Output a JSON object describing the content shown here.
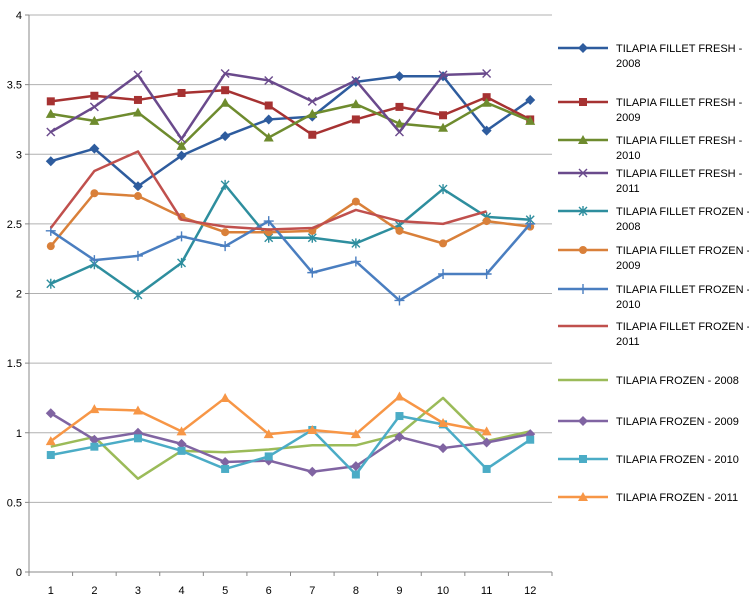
{
  "chart_data": {
    "type": "line",
    "x": [
      1,
      2,
      3,
      4,
      5,
      6,
      7,
      8,
      9,
      10,
      11,
      12
    ],
    "ylim": [
      0,
      4
    ],
    "yticks": [
      "0",
      "0.5",
      "1",
      "1.5",
      "2",
      "2.5",
      "3",
      "3.5",
      "4"
    ],
    "xticks": [
      "1",
      "2",
      "3",
      "4",
      "5",
      "6",
      "7",
      "8",
      "9",
      "10",
      "11",
      "12"
    ],
    "grid": "horizontal",
    "legend_position": "right",
    "series": [
      {
        "name": "TILAPIA FILLET  FRESH -",
        "name2": "2008",
        "color": "#2E5C9E",
        "marker": "diamond",
        "values": [
          2.95,
          3.04,
          2.77,
          2.99,
          3.13,
          3.25,
          3.27,
          3.52,
          3.56,
          3.56,
          3.17,
          3.39
        ]
      },
      {
        "name": "TILAPIA FILLET  FRESH -",
        "name2": "2009",
        "color": "#A63232",
        "marker": "square",
        "values": [
          3.38,
          3.42,
          3.39,
          3.44,
          3.46,
          3.35,
          3.14,
          3.25,
          3.34,
          3.28,
          3.41,
          3.25
        ]
      },
      {
        "name": "TILAPIA FILLET  FRESH -",
        "name2": "2010",
        "color": "#6E8B2E",
        "marker": "triangle",
        "values": [
          3.29,
          3.24,
          3.3,
          3.06,
          3.37,
          3.12,
          3.29,
          3.36,
          3.22,
          3.19,
          3.37,
          3.24
        ]
      },
      {
        "name": "TILAPIA FILLET  FRESH -",
        "name2": "2011",
        "color": "#6A4A8C",
        "marker": "x",
        "values": [
          3.16,
          3.34,
          3.57,
          3.11,
          3.58,
          3.53,
          3.38,
          3.53,
          3.16,
          3.57,
          3.58,
          null
        ]
      },
      {
        "name": "TILAPIA FILLET  FROZEN -",
        "name2": "2008",
        "color": "#2E8E9E",
        "marker": "star",
        "values": [
          2.07,
          2.21,
          1.99,
          2.22,
          2.78,
          2.4,
          2.4,
          2.36,
          2.49,
          2.75,
          2.55,
          2.53
        ]
      },
      {
        "name": "TILAPIA FILLET  FROZEN -",
        "name2": "2009",
        "color": "#D9803A",
        "marker": "circle",
        "values": [
          2.34,
          2.72,
          2.7,
          2.55,
          2.44,
          2.44,
          2.45,
          2.66,
          2.45,
          2.36,
          2.52,
          2.48
        ]
      },
      {
        "name": "TILAPIA FILLET  FROZEN -",
        "name2": "2010",
        "color": "#4A7EC0",
        "marker": "plus",
        "values": [
          2.45,
          2.24,
          2.27,
          2.41,
          2.34,
          2.52,
          2.15,
          2.23,
          1.95,
          2.14,
          2.14,
          2.5
        ]
      },
      {
        "name": "TILAPIA FILLET  FROZEN -",
        "name2": "2011",
        "color": "#C0504D",
        "marker": "none",
        "values": [
          2.47,
          2.88,
          3.02,
          2.53,
          2.48,
          2.46,
          2.47,
          2.6,
          2.52,
          2.5,
          2.59,
          null
        ]
      },
      {
        "name": "TILAPIA FROZEN - 2008",
        "name2": "",
        "color": "#9BBB59",
        "marker": "none",
        "values": [
          0.9,
          0.97,
          0.67,
          0.87,
          0.86,
          0.88,
          0.91,
          0.91,
          0.99,
          1.25,
          0.94,
          1.01
        ]
      },
      {
        "name": "TILAPIA FROZEN - 2009",
        "name2": "",
        "color": "#8064A2",
        "marker": "diamond",
        "values": [
          1.14,
          0.95,
          1.0,
          0.92,
          0.79,
          0.8,
          0.72,
          0.76,
          0.97,
          0.89,
          0.93,
          0.99
        ]
      },
      {
        "name": "TILAPIA FROZEN - 2010",
        "name2": "",
        "color": "#4BACC6",
        "marker": "square",
        "values": [
          0.84,
          0.9,
          0.96,
          0.87,
          0.74,
          0.83,
          1.02,
          0.7,
          1.12,
          1.06,
          0.74,
          0.95
        ]
      },
      {
        "name": "TILAPIA FROZEN - 2011",
        "name2": "",
        "color": "#F79646",
        "marker": "triangle",
        "values": [
          0.94,
          1.17,
          1.16,
          1.01,
          1.25,
          0.99,
          1.02,
          0.99,
          1.26,
          1.07,
          1.01,
          null
        ]
      }
    ]
  }
}
